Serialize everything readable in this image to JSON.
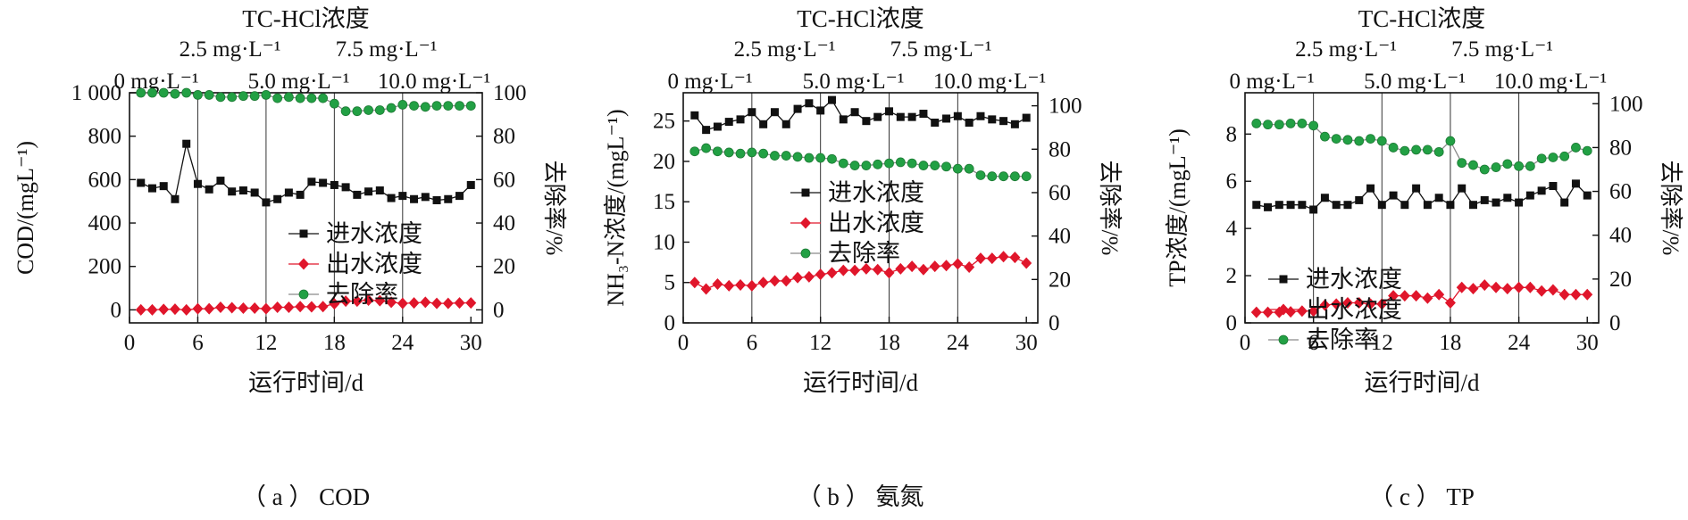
{
  "chart_data": [
    {
      "type": "line",
      "panel_label": "（ a ） COD",
      "title": "TC-HCl浓度",
      "phase_labels": [
        "0 mg·L⁻¹",
        "2.5 mg·L⁻¹",
        "5.0 mg·L⁻¹",
        "7.5 mg·L⁻¹",
        "10.0 mg·L⁻¹"
      ],
      "phase_boundaries": [
        6,
        12,
        18,
        24
      ],
      "xlabel": "运行时间/d",
      "ylabel": "COD/(mgL⁻¹)",
      "y2label": "去除率/%",
      "xlim": [
        0,
        31
      ],
      "xticks": [
        0,
        6,
        12,
        18,
        24,
        30
      ],
      "ylim": [
        -60,
        1000
      ],
      "yticks": [
        0,
        200,
        400,
        600,
        800,
        1000
      ],
      "ytick_labels": [
        "0",
        "200",
        "400",
        "600",
        "800",
        "1 000"
      ],
      "y2lim": [
        -6,
        100
      ],
      "y2ticks": [
        0,
        20,
        40,
        60,
        80,
        100
      ],
      "legend_position": "center",
      "x": [
        1,
        2,
        3,
        4,
        5,
        6,
        7,
        8,
        9,
        10,
        11,
        12,
        13,
        14,
        15,
        16,
        17,
        18,
        19,
        20,
        21,
        22,
        23,
        24,
        25,
        26,
        27,
        28,
        29,
        30
      ],
      "series": [
        {
          "name": "进水浓度",
          "axis": "left",
          "marker": "square",
          "color": "#111111",
          "values": [
            585,
            560,
            570,
            510,
            765,
            580,
            555,
            595,
            545,
            550,
            540,
            495,
            510,
            540,
            530,
            590,
            585,
            575,
            565,
            530,
            545,
            550,
            515,
            525,
            510,
            520,
            505,
            510,
            525,
            575
          ]
        },
        {
          "name": "出水浓度",
          "axis": "left",
          "marker": "diamond",
          "color": "#e0162b",
          "values": [
            0,
            0,
            2,
            3,
            0,
            5,
            5,
            12,
            10,
            8,
            8,
            5,
            12,
            12,
            15,
            14,
            15,
            28,
            40,
            40,
            45,
            42,
            35,
            30,
            32,
            35,
            30,
            30,
            32,
            32
          ]
        },
        {
          "name": "去除率",
          "axis": "right",
          "marker": "circle",
          "color": "#22a044",
          "values": [
            100,
            100,
            100,
            99.5,
            100,
            99,
            99,
            98,
            98,
            98.5,
            98.5,
            99,
            97.5,
            98,
            97.5,
            97.5,
            97.5,
            95,
            91.5,
            91.5,
            92,
            92,
            93,
            94.5,
            94,
            93.5,
            94,
            94,
            94,
            94
          ]
        }
      ]
    },
    {
      "type": "line",
      "panel_label": "（ b ） 氨氮",
      "title": "TC-HCl浓度",
      "phase_labels": [
        "0 mg·L⁻¹",
        "2.5 mg·L⁻¹",
        "5.0 mg·L⁻¹",
        "7.5 mg·L⁻¹",
        "10.0 mg·L⁻¹"
      ],
      "phase_boundaries": [
        6,
        12,
        18,
        24
      ],
      "xlabel": "运行时间/d",
      "ylabel": "NH₃-N浓度/(mgL⁻¹)",
      "y2label": "去除率/%",
      "xlim": [
        0,
        31
      ],
      "xticks": [
        0,
        6,
        12,
        18,
        24,
        30
      ],
      "ylim": [
        0,
        28.5
      ],
      "yticks": [
        0,
        5,
        10,
        15,
        20,
        25
      ],
      "ytick_labels": [
        "0",
        "5",
        "10",
        "15",
        "20",
        "25"
      ],
      "y2lim": [
        0,
        106
      ],
      "y2ticks": [
        0,
        20,
        40,
        60,
        80,
        100
      ],
      "legend_position": "center-left",
      "x": [
        1,
        2,
        3,
        4,
        5,
        6,
        7,
        8,
        9,
        10,
        11,
        12,
        13,
        14,
        15,
        16,
        17,
        18,
        19,
        20,
        21,
        22,
        23,
        24,
        25,
        26,
        27,
        28,
        29,
        30
      ],
      "series": [
        {
          "name": "进水浓度",
          "axis": "left",
          "marker": "square",
          "color": "#111111",
          "values": [
            25.7,
            23.9,
            24.3,
            24.9,
            25.2,
            26.1,
            24.6,
            26.1,
            24.6,
            26.5,
            27.2,
            26.3,
            27.6,
            25.2,
            26.1,
            25.0,
            25.5,
            26.2,
            25.5,
            25.5,
            25.9,
            24.8,
            25.3,
            25.6,
            24.8,
            25.6,
            25.2,
            25.0,
            24.6,
            25.4
          ]
        },
        {
          "name": "出水浓度",
          "axis": "left",
          "marker": "diamond",
          "color": "#e0162b",
          "values": [
            5.0,
            4.2,
            4.8,
            4.6,
            4.7,
            4.6,
            5.0,
            5.2,
            5.2,
            5.6,
            5.7,
            6.0,
            6.2,
            6.5,
            6.5,
            6.7,
            6.6,
            6.2,
            6.7,
            7.0,
            6.6,
            7.0,
            7.1,
            7.3,
            6.9,
            8.0,
            8.0,
            8.2,
            8.1,
            7.4
          ]
        },
        {
          "name": "去除率",
          "axis": "right",
          "marker": "circle",
          "color": "#22a044",
          "values": [
            79,
            80.5,
            79,
            78.5,
            78,
            78.5,
            78,
            77,
            77,
            76.5,
            76,
            76,
            75.5,
            73.5,
            72.5,
            72.5,
            73,
            73.5,
            74,
            73.5,
            72.5,
            72.5,
            72,
            71,
            71,
            68,
            67.5,
            67.5,
            67.5,
            67.5
          ]
        }
      ]
    },
    {
      "type": "line",
      "panel_label": "（ c ） TP",
      "title": "TC-HCl浓度",
      "phase_labels": [
        "0 mg·L⁻¹",
        "2.5 mg·L⁻¹",
        "5.0 mg·L⁻¹",
        "7.5 mg·L⁻¹",
        "10.0 mg·L⁻¹"
      ],
      "phase_boundaries": [
        6,
        12,
        18,
        24
      ],
      "xlabel": "运行时间/d",
      "ylabel": "TP浓度/(mgL⁻¹)",
      "y2label": "去除率/%",
      "xlim": [
        0,
        31
      ],
      "xticks": [
        0,
        6,
        12,
        18,
        24,
        30
      ],
      "ylim": [
        0,
        9.75
      ],
      "yticks": [
        0,
        2,
        4,
        6,
        8
      ],
      "ytick_labels": [
        "0",
        "2",
        "4",
        "6",
        "8"
      ],
      "y2lim": [
        0,
        105
      ],
      "y2ticks": [
        0,
        20,
        40,
        60,
        80,
        100
      ],
      "legend_position": "center-left",
      "x": [
        1,
        2,
        3,
        4,
        5,
        6,
        7,
        8,
        9,
        10,
        11,
        12,
        13,
        14,
        15,
        16,
        17,
        18,
        19,
        20,
        21,
        22,
        23,
        24,
        25,
        26,
        27,
        28,
        29,
        30
      ],
      "series": [
        {
          "name": "进水浓度",
          "axis": "left",
          "marker": "square",
          "color": "#111111",
          "values": [
            5.0,
            4.9,
            5.0,
            5.0,
            5.0,
            4.8,
            5.3,
            5.0,
            5.0,
            5.2,
            5.7,
            5.0,
            5.4,
            5.0,
            5.7,
            5.0,
            5.3,
            5.0,
            5.7,
            5.0,
            5.2,
            5.1,
            5.3,
            5.1,
            5.4,
            5.6,
            5.8,
            5.1,
            5.9,
            5.4
          ]
        },
        {
          "name": "出水浓度",
          "axis": "left",
          "marker": "diamond",
          "color": "#e0162b",
          "values": [
            0.45,
            0.45,
            0.45,
            0.47,
            0.5,
            0.5,
            0.75,
            0.8,
            0.85,
            0.85,
            0.8,
            0.8,
            1.15,
            1.15,
            1.15,
            1.05,
            1.2,
            0.85,
            1.5,
            1.45,
            1.6,
            1.5,
            1.45,
            1.5,
            1.5,
            1.35,
            1.4,
            1.2,
            1.2,
            1.2
          ]
        },
        {
          "name": "去除率",
          "axis": "right",
          "marker": "circle",
          "color": "#22a044",
          "values": [
            91,
            90.5,
            90.5,
            91,
            91,
            90,
            85,
            84,
            83.5,
            83,
            84,
            83,
            80,
            78.5,
            79,
            79,
            78,
            83,
            73,
            72,
            70,
            71,
            72.5,
            71.5,
            71.5,
            75,
            75.5,
            76,
            80,
            78.5
          ]
        }
      ]
    }
  ]
}
